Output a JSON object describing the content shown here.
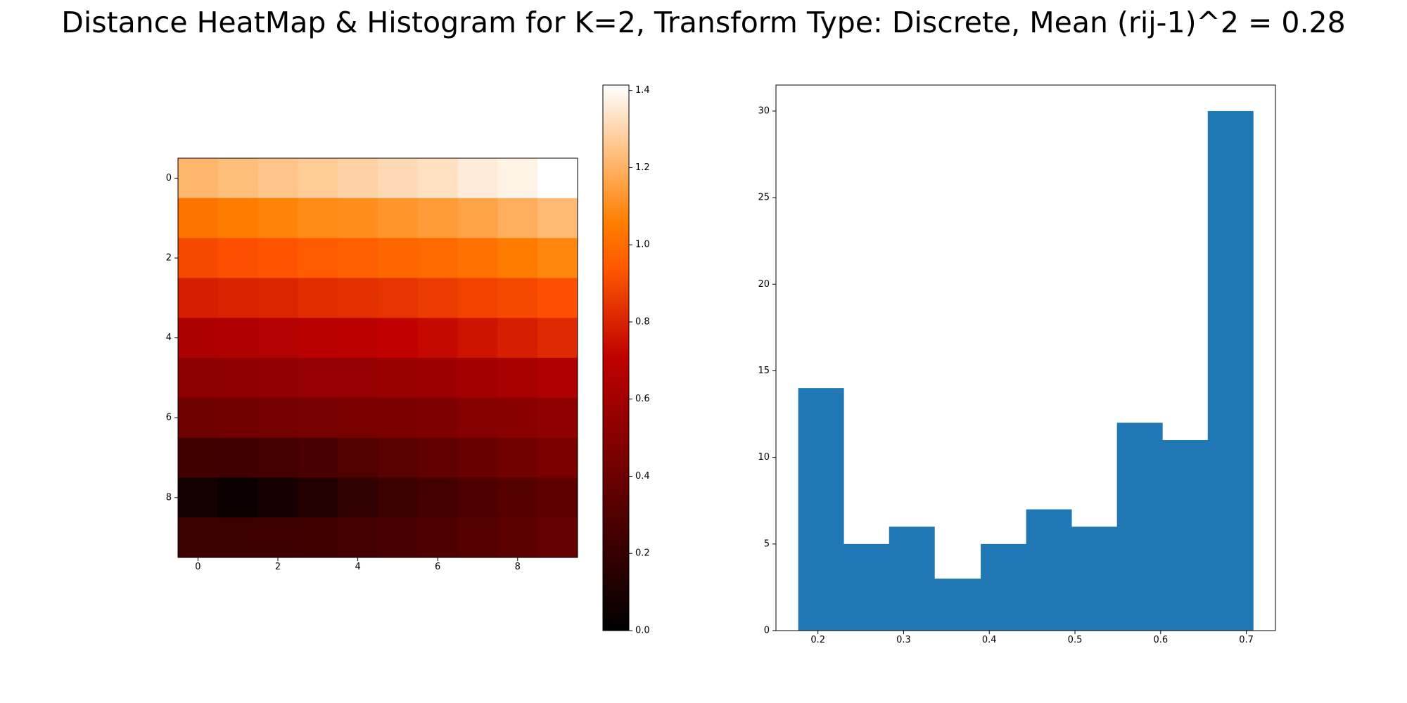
{
  "figure": {
    "title": "Distance HeatMap & Histogram for K=2, Transform Type: Discrete, Mean (rij-1)^2 = 0.28"
  },
  "chart_data": [
    {
      "type": "heatmap",
      "colormap": "gist_heat",
      "vmin": 0.0,
      "vmax": 1.414,
      "x_ticks": [
        0,
        2,
        4,
        6,
        8
      ],
      "x_tick_labels": [
        "0",
        "2",
        "4",
        "6",
        "8"
      ],
      "y_ticks": [
        0,
        2,
        4,
        6,
        8
      ],
      "y_tick_labels": [
        "0",
        "2",
        "4",
        "6",
        "8"
      ],
      "colorbar_ticks": [
        0.0,
        0.2,
        0.4,
        0.6,
        0.8,
        1.0,
        1.2,
        1.4
      ],
      "colorbar_tick_labels": [
        "0.0",
        "0.2",
        "0.4",
        "0.6",
        "0.8",
        "1.0",
        "1.2",
        "1.4"
      ],
      "values": [
        [
          1.21,
          1.23,
          1.25,
          1.27,
          1.29,
          1.31,
          1.33,
          1.36,
          1.38,
          1.414
        ],
        [
          1.03,
          1.05,
          1.07,
          1.09,
          1.1,
          1.12,
          1.14,
          1.16,
          1.19,
          1.22
        ],
        [
          0.91,
          0.93,
          0.94,
          0.96,
          0.97,
          0.99,
          1.0,
          1.02,
          1.05,
          1.08
        ],
        [
          0.79,
          0.8,
          0.81,
          0.83,
          0.84,
          0.85,
          0.87,
          0.89,
          0.91,
          0.93
        ],
        [
          0.64,
          0.65,
          0.66,
          0.68,
          0.69,
          0.71,
          0.73,
          0.76,
          0.79,
          0.82
        ],
        [
          0.52,
          0.53,
          0.54,
          0.55,
          0.56,
          0.57,
          0.58,
          0.6,
          0.62,
          0.65
        ],
        [
          0.41,
          0.42,
          0.43,
          0.44,
          0.45,
          0.46,
          0.47,
          0.49,
          0.51,
          0.53
        ],
        [
          0.24,
          0.23,
          0.25,
          0.27,
          0.3,
          0.33,
          0.36,
          0.39,
          0.42,
          0.45
        ],
        [
          0.07,
          0.04,
          0.08,
          0.13,
          0.18,
          0.22,
          0.25,
          0.29,
          0.32,
          0.35
        ],
        [
          0.22,
          0.22,
          0.23,
          0.24,
          0.25,
          0.27,
          0.29,
          0.31,
          0.34,
          0.37
        ]
      ]
    },
    {
      "type": "bar",
      "subtype": "histogram",
      "color": "#1f77b4",
      "bin_edges": [
        0.177,
        0.23,
        0.283,
        0.336,
        0.39,
        0.443,
        0.496,
        0.549,
        0.602,
        0.655,
        0.708
      ],
      "counts": [
        14,
        5,
        6,
        3,
        5,
        7,
        6,
        12,
        11,
        30
      ],
      "xlim": [
        0.151,
        0.734
      ],
      "ylim": [
        0,
        31.5
      ],
      "x_ticks": [
        0.2,
        0.3,
        0.4,
        0.5,
        0.6,
        0.7
      ],
      "x_tick_labels": [
        "0.2",
        "0.3",
        "0.4",
        "0.5",
        "0.6",
        "0.7"
      ],
      "y_ticks": [
        0,
        5,
        10,
        15,
        20,
        25,
        30
      ],
      "y_tick_labels": [
        "0",
        "5",
        "10",
        "15",
        "20",
        "25",
        "30"
      ]
    }
  ]
}
